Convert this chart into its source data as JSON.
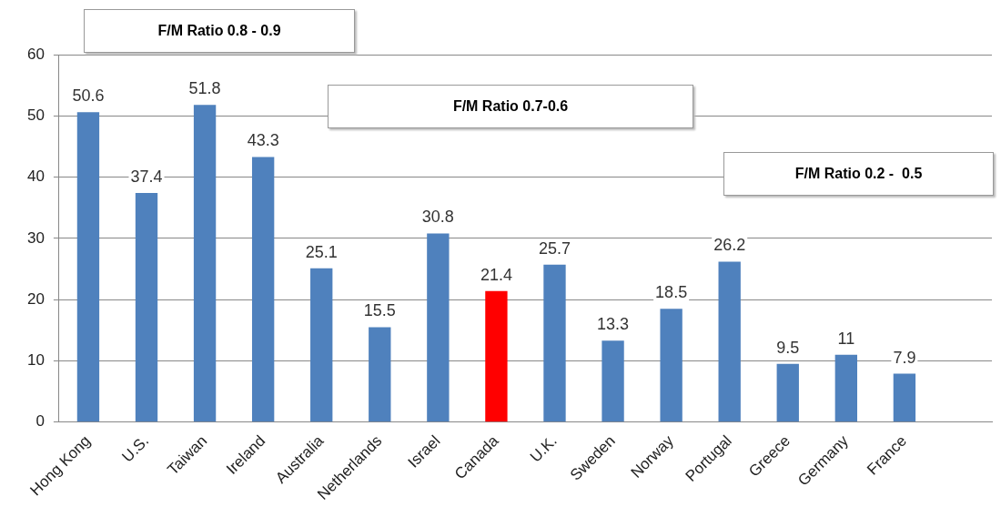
{
  "chart_data": {
    "type": "bar",
    "categories": [
      "Hong Kong",
      "U.S.",
      "Taiwan",
      "Ireland",
      "Australia",
      "Netherlands",
      "Israel",
      "Canada",
      "U.K.",
      "Sweden",
      "Norway",
      "Portugal",
      "Greece",
      "Germany",
      "France",
      null
    ],
    "values": [
      50.6,
      37.4,
      51.8,
      43.3,
      25.1,
      15.5,
      30.8,
      21.4,
      25.7,
      13.3,
      18.5,
      26.2,
      9.5,
      11,
      7.9,
      null
    ],
    "colors": [
      "#4f81bd",
      "#4f81bd",
      "#4f81bd",
      "#4f81bd",
      "#4f81bd",
      "#4f81bd",
      "#4f81bd",
      "#ff0000",
      "#4f81bd",
      "#4f81bd",
      "#4f81bd",
      "#4f81bd",
      "#4f81bd",
      "#4f81bd",
      "#4f81bd",
      "#4f81bd"
    ],
    "ylim": [
      0,
      60
    ],
    "yticks": [
      0,
      10,
      20,
      30,
      40,
      50,
      60
    ],
    "grid": "y",
    "legend": false,
    "data_labels": true,
    "annotations": [
      "F/M Ratio 0.8 - 0.9",
      "F/M Ratio 0.7-0.6",
      "F/M Ratio 0.2 -  0.5"
    ]
  }
}
